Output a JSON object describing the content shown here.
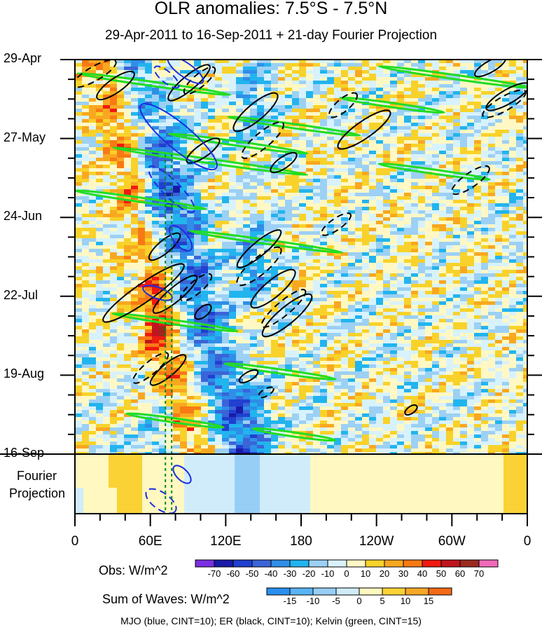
{
  "header": {
    "title": "OLR anomalies: 7.5°S - 7.5°N",
    "subtitle": "29-Apr-2011 to 16-Sep-2011 + 21-day Fourier Projection"
  },
  "chart_data": {
    "type": "heatmap",
    "title": "OLR anomalies: 7.5°S - 7.5°N",
    "subtitle": "29-Apr-2011 to 16-Sep-2011 + 21-day Fourier Projection",
    "y_tick_labels": [
      "29-Apr",
      "27-May",
      "24-Jun",
      "22-Jul",
      "19-Aug",
      "16-Sep"
    ],
    "y_projection_label": [
      "Fourier",
      "Projection"
    ],
    "x_tick_labels": [
      "0",
      "60E",
      "120E",
      "180",
      "120W",
      "60W",
      "0"
    ],
    "x_range_deg_east": [
      0,
      360
    ],
    "x_ticks_deg_east": [
      0,
      60,
      120,
      180,
      240,
      300,
      360
    ],
    "period_days": 140,
    "projection_days": 21,
    "reference_lines_deg_east": [
      72,
      77
    ],
    "obs_colorbar": {
      "label": "Obs: W/m^2",
      "levels": [
        -70,
        -60,
        -50,
        -40,
        -30,
        -20,
        -10,
        0,
        10,
        20,
        30,
        40,
        50,
        60,
        70
      ],
      "colors": [
        "#7a2fe0",
        "#1a1aa8",
        "#2040d0",
        "#3a64d8",
        "#2f8ee8",
        "#22b4ee",
        "#9cd0f4",
        "#d8f2fc",
        "#fff8c4",
        "#f8d22a",
        "#f8a820",
        "#f87a14",
        "#f01a10",
        "#c0141e",
        "#9a2a1e",
        "#f06ab8"
      ]
    },
    "waves_colorbar": {
      "label": "Sum of Waves: W/m^2",
      "levels": [
        -15,
        -10,
        -5,
        0,
        5,
        10,
        15
      ],
      "colors": [
        "#2a8ff0",
        "#59b4f4",
        "#96cef6",
        "#d0ecfb",
        "#fff8c0",
        "#fbd235",
        "#f7a826",
        "#f56a16"
      ]
    },
    "wave_contours": [
      {
        "name": "MJO",
        "color": "#1a2ee0"
      },
      {
        "name": "ER",
        "color": "#000000"
      },
      {
        "name": "Kelvin",
        "color": "#22dd22"
      }
    ],
    "footnote": "MJO (blue, CINT=10); ER (black, CINT=10); Kelvin (green, CINT=15)",
    "grid": false,
    "legend_placement": "bottom"
  }
}
